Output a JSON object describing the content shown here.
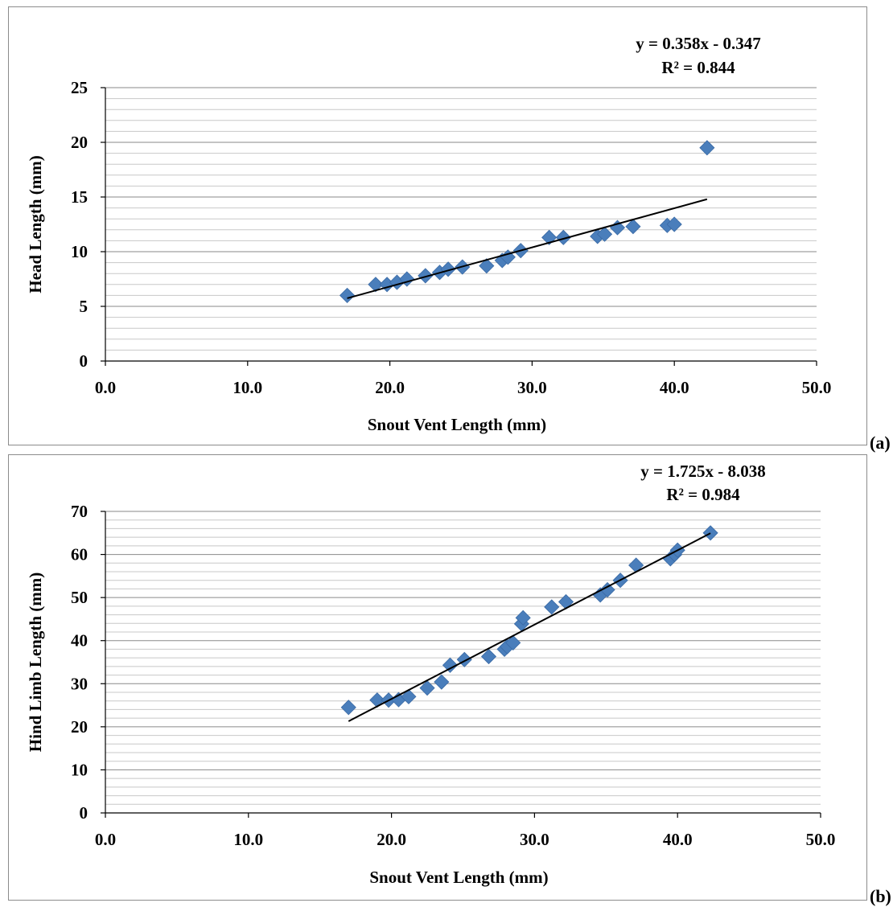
{
  "panels": [
    {
      "tag": "(a)"
    },
    {
      "tag": "(b)"
    }
  ],
  "chart_data": [
    {
      "type": "scatter",
      "title": "",
      "xlabel": "Snout Vent Length (mm)",
      "ylabel": "Head Length (mm)",
      "xlim": [
        0,
        50
      ],
      "ylim": [
        0,
        25
      ],
      "x_ticks": [
        "0.0",
        "10.0",
        "20.0",
        "30.0",
        "40.0",
        "50.0"
      ],
      "y_ticks": [
        "0",
        "5",
        "10",
        "15",
        "20",
        "25"
      ],
      "grid": true,
      "marker_color": "#4a7ebb",
      "series": [
        {
          "x": [
            17.0,
            19.0,
            19.8,
            20.5,
            21.2,
            22.5,
            23.5,
            24.1,
            25.1,
            26.8,
            27.9,
            28.3,
            29.2,
            31.2,
            32.2,
            34.6,
            35.1,
            36.0,
            37.1,
            39.5,
            40.0,
            42.3
          ],
          "y": [
            6.0,
            7.0,
            7.0,
            7.2,
            7.5,
            7.8,
            8.1,
            8.4,
            8.6,
            8.7,
            9.2,
            9.5,
            10.1,
            11.3,
            11.3,
            11.4,
            11.6,
            12.2,
            12.3,
            12.4,
            12.5,
            19.5
          ]
        }
      ],
      "trendline": {
        "equation": "y = 0.358x - 0.347",
        "r2": "R² = 0.844",
        "slope": 0.358,
        "intercept": -0.347,
        "x_range": [
          17.0,
          42.3
        ]
      }
    },
    {
      "type": "scatter",
      "title": "",
      "xlabel": "Snout Vent Length (mm)",
      "ylabel": "Hind  Limb Length (mm)",
      "xlim": [
        0,
        50
      ],
      "ylim": [
        0,
        70
      ],
      "x_ticks": [
        "0.0",
        "10.0",
        "20.0",
        "30.0",
        "40.0",
        "50.0"
      ],
      "y_ticks": [
        "0",
        "10",
        "20",
        "30",
        "40",
        "50",
        "60",
        "70"
      ],
      "grid": true,
      "marker_color": "#4a7ebb",
      "series": [
        {
          "x": [
            17.0,
            19.0,
            19.8,
            20.5,
            21.2,
            22.5,
            23.5,
            24.1,
            25.1,
            26.8,
            27.9,
            28.1,
            28.5,
            29.1,
            29.2,
            31.2,
            32.2,
            34.6,
            35.1,
            36.0,
            37.1,
            39.5,
            39.8,
            40.0,
            42.3
          ],
          "y": [
            24.5,
            26.2,
            26.2,
            26.3,
            27.0,
            29.0,
            30.4,
            34.3,
            35.6,
            36.3,
            38.0,
            38.6,
            39.5,
            43.9,
            45.3,
            47.8,
            49.0,
            50.6,
            51.8,
            54.0,
            57.5,
            59.0,
            60.0,
            61.0,
            65.0
          ]
        }
      ],
      "trendline": {
        "equation": "y = 1.725x - 8.038",
        "r2": "R² = 0.984",
        "slope": 1.725,
        "intercept": -8.038,
        "x_range": [
          17.0,
          42.3
        ]
      }
    }
  ]
}
